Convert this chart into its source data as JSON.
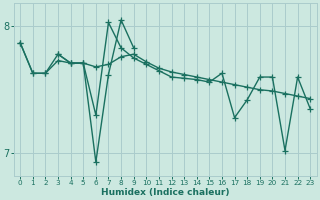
{
  "xlabel": "Humidex (Indice chaleur)",
  "background_color": "#cce8e0",
  "grid_color": "#aacccc",
  "line_color": "#1a7060",
  "xlim": [
    -0.5,
    23.5
  ],
  "ylim": [
    6.82,
    8.18
  ],
  "yticks": [
    7,
    8
  ],
  "xticks": [
    0,
    1,
    2,
    3,
    4,
    5,
    6,
    7,
    8,
    9,
    10,
    11,
    12,
    13,
    14,
    15,
    16,
    17,
    18,
    19,
    20,
    21,
    22,
    23
  ],
  "series1_x": [
    0,
    1,
    2,
    3,
    4,
    5,
    6,
    7,
    8,
    9,
    10,
    11,
    12,
    13,
    14,
    15,
    16,
    17,
    18,
    19,
    20,
    21,
    22,
    23
  ],
  "series1_y": [
    7.87,
    7.63,
    7.63,
    7.73,
    7.71,
    7.71,
    7.68,
    7.7,
    7.76,
    7.78,
    7.72,
    7.67,
    7.64,
    7.62,
    7.6,
    7.58,
    7.56,
    7.54,
    7.52,
    7.5,
    7.49,
    7.47,
    7.45,
    7.43
  ],
  "series2_x": [
    0,
    1,
    2,
    3,
    4,
    5,
    6,
    7,
    8,
    9,
    10,
    11,
    12,
    13,
    14,
    15,
    16,
    17,
    18,
    19,
    20,
    21,
    22,
    23
  ],
  "series2_y": [
    7.87,
    7.63,
    7.63,
    7.78,
    7.71,
    7.71,
    7.3,
    8.03,
    7.83,
    7.75,
    7.7,
    7.65,
    7.6,
    7.59,
    7.58,
    7.56,
    7.63,
    7.28,
    7.42,
    7.6,
    7.6,
    7.02,
    7.6,
    7.35
  ],
  "series3_x": [
    3,
    4,
    5,
    6,
    7,
    8,
    9
  ],
  "series3_y": [
    7.78,
    7.71,
    7.71,
    6.93,
    7.62,
    8.05,
    7.83
  ],
  "marker_size": 4,
  "line_width": 1.0
}
